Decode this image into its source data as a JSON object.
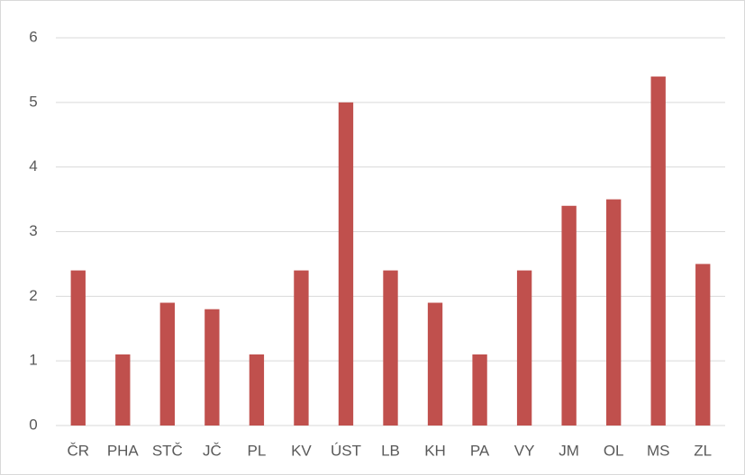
{
  "chart_data": {
    "type": "bar",
    "categories": [
      "ČR",
      "PHA",
      "STČ",
      "JČ",
      "PL",
      "KV",
      "ÚST",
      "LB",
      "KH",
      "PA",
      "VY",
      "JM",
      "OL",
      "MS",
      "ZL"
    ],
    "values": [
      2.4,
      1.1,
      1.9,
      1.8,
      1.1,
      2.4,
      5.0,
      2.4,
      1.9,
      1.1,
      2.4,
      3.4,
      3.5,
      5.4,
      2.5
    ],
    "color": "#c0504d",
    "ylim": [
      0,
      6
    ],
    "yticks": [
      0,
      1,
      2,
      3,
      4,
      5,
      6
    ],
    "grid": true
  }
}
